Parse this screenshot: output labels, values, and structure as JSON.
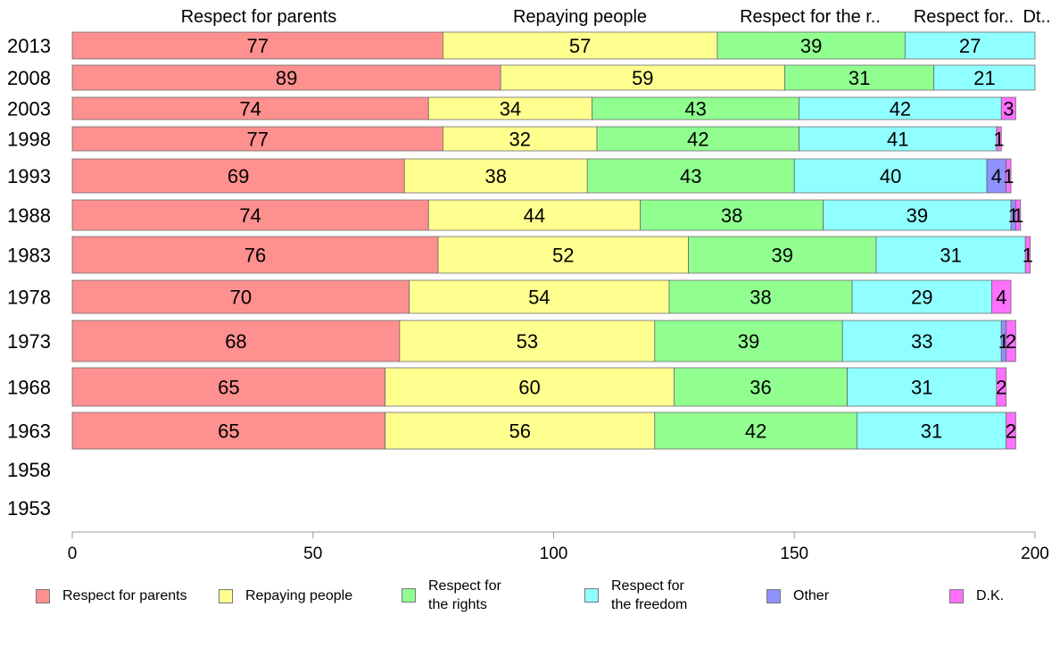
{
  "chart_data": {
    "type": "bar",
    "orientation": "horizontal",
    "stacked": true,
    "categories": [
      "2013",
      "2008",
      "2003",
      "1998",
      "1993",
      "1988",
      "1983",
      "1978",
      "1973",
      "1968",
      "1963",
      "1958",
      "1953"
    ],
    "series": [
      {
        "name": "Respect for parents",
        "color": "#ff9090",
        "values": [
          77,
          89,
          74,
          77,
          69,
          74,
          76,
          70,
          68,
          65,
          65,
          null,
          null
        ]
      },
      {
        "name": "Repaying people",
        "color": "#ffff90",
        "values": [
          57,
          59,
          34,
          32,
          38,
          44,
          52,
          54,
          53,
          60,
          56,
          null,
          null
        ]
      },
      {
        "name": "Respect for the rights",
        "color": "#90ff90",
        "values": [
          39,
          31,
          43,
          42,
          43,
          38,
          39,
          38,
          39,
          36,
          42,
          null,
          null
        ]
      },
      {
        "name": "Respect for the freedom",
        "color": "#90ffff",
        "values": [
          27,
          21,
          42,
          41,
          40,
          39,
          31,
          29,
          33,
          31,
          31,
          null,
          null
        ]
      },
      {
        "name": "Other",
        "color": "#9090ff",
        "values": [
          0,
          0,
          0,
          0,
          4,
          1,
          0,
          0,
          1,
          0,
          0,
          null,
          null
        ]
      },
      {
        "name": "D.K.",
        "color": "#ff70ff",
        "values": [
          0,
          0,
          3,
          1,
          1,
          1,
          1,
          4,
          2,
          2,
          2,
          null,
          null
        ]
      }
    ],
    "top_labels": [
      "Respect for parents",
      "Repaying people",
      "Respect for the r..",
      "Respect for..",
      "Dt.."
    ],
    "xlim": [
      0,
      200
    ],
    "xticks": [
      "0",
      "50",
      "100",
      "150",
      "200"
    ],
    "grid": false,
    "legend_position": "bottom",
    "legend_labels": [
      "Respect for parents",
      "Repaying people",
      "Respect for\nthe rights",
      "Respect for\nthe freedom",
      "Other",
      "D.K."
    ]
  }
}
